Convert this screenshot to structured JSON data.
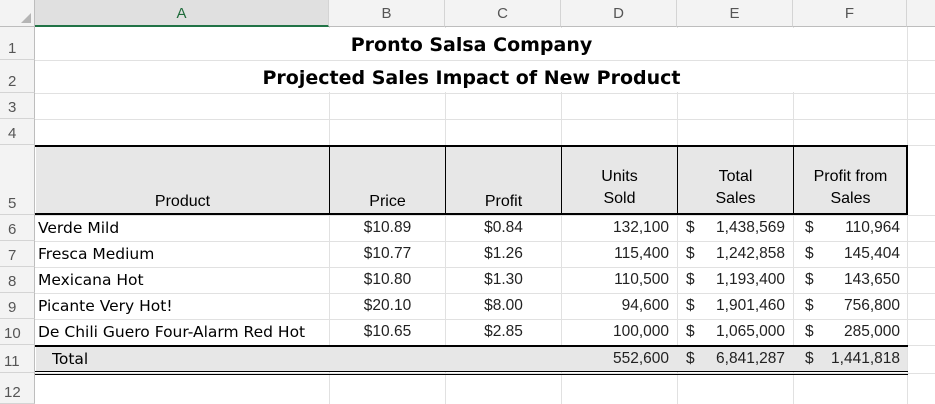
{
  "sheet": {
    "columns": [
      "A",
      "B",
      "C",
      "D",
      "E",
      "F"
    ],
    "rows": [
      "1",
      "2",
      "3",
      "4",
      "5",
      "6",
      "7",
      "8",
      "9",
      "10",
      "11",
      "12"
    ],
    "title": "Pronto Salsa Company",
    "subtitle": "Projected Sales Impact of New Product",
    "headers": {
      "product": "Product",
      "price": "Price",
      "profit": "Profit",
      "units_line1": "Units",
      "units_line2": "Sold",
      "total_line1": "Total",
      "total_line2": "Sales",
      "pfs_line1": "Profit from",
      "pfs_line2": "Sales"
    },
    "data_rows": [
      {
        "product": "Verde Mild",
        "price": "$10.89",
        "profit": "$0.84",
        "units": "132,100",
        "total_cur": "$",
        "total": "1,438,569",
        "pfs_cur": "$",
        "pfs": "110,964"
      },
      {
        "product": "Fresca Medium",
        "price": "$10.77",
        "profit": "$1.26",
        "units": "115,400",
        "total_cur": "$",
        "total": "1,242,858",
        "pfs_cur": "$",
        "pfs": "145,404"
      },
      {
        "product": "Mexicana Hot",
        "price": "$10.80",
        "profit": "$1.30",
        "units": "110,500",
        "total_cur": "$",
        "total": "1,193,400",
        "pfs_cur": "$",
        "pfs": "143,650"
      },
      {
        "product": "Picante Very  Hot!",
        "price": "$20.10",
        "profit": "$8.00",
        "units": "94,600",
        "total_cur": "$",
        "total": "1,901,460",
        "pfs_cur": "$",
        "pfs": "756,800"
      },
      {
        "product": "De Chili Guero Four-Alarm Red Hot",
        "price": "$10.65",
        "profit": "$2.85",
        "units": "100,000",
        "total_cur": "$",
        "total": "1,065,000",
        "pfs_cur": "$",
        "pfs": "285,000"
      }
    ],
    "totals": {
      "label": "Total",
      "units": "552,600",
      "total_cur": "$",
      "total": "6,841,287",
      "pfs_cur": "$",
      "pfs": "1,441,818"
    }
  },
  "colors": {
    "selected_column": "#217346",
    "header_fill": "#e7e7e7",
    "total_fill": "#e7e7e7"
  }
}
